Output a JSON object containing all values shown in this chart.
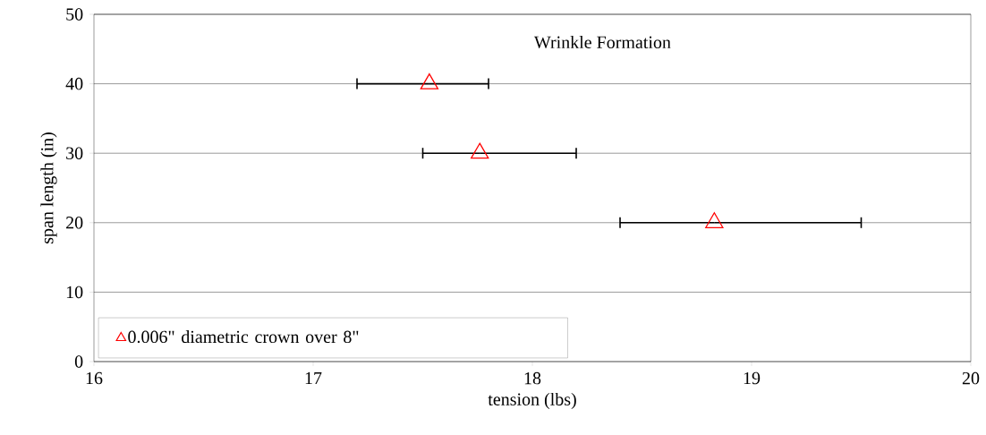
{
  "chart_data": {
    "type": "scatter",
    "title": "Wrinkle Formation",
    "xlabel": "tension (lbs)",
    "ylabel": "span length (in)",
    "x": [
      17.53,
      17.76,
      18.83
    ],
    "series": [
      {
        "name": "0.006\" diametric crown over 8\"",
        "color": "#ff0000",
        "values": [
          40,
          30,
          20
        ],
        "xerrors": [
          [
            17.2,
            17.8
          ],
          [
            17.5,
            18.2
          ],
          [
            18.4,
            19.5
          ]
        ]
      }
    ],
    "xlim": [
      16,
      20
    ],
    "xticks": [
      16,
      17,
      18,
      19,
      20
    ],
    "ylim": [
      0,
      50
    ],
    "yticks": [
      0,
      10,
      20,
      30,
      40,
      50
    ],
    "grid": "y",
    "legend": "bottom left",
    "marker": "triangle"
  }
}
